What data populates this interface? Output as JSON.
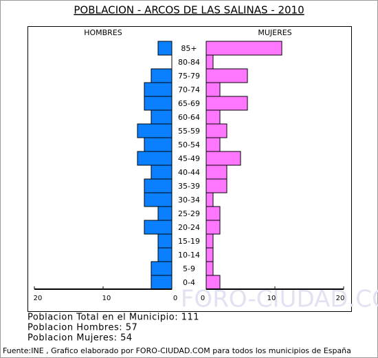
{
  "chart_data": {
    "type": "pyramid",
    "title": "POBLACION - ARCOS DE LAS SALINAS - 2010",
    "categories": [
      "85+",
      "80-84",
      "75-79",
      "70-74",
      "65-69",
      "60-64",
      "55-59",
      "50-54",
      "45-49",
      "40-44",
      "35-39",
      "30-34",
      "25-29",
      "20-24",
      "15-19",
      "10-14",
      "5-9",
      "0-4"
    ],
    "series": [
      {
        "name": "HOMBRES",
        "color": "#0a80ff",
        "values": [
          2,
          0,
          3,
          4,
          4,
          3,
          5,
          4,
          5,
          3,
          4,
          4,
          2,
          4,
          2,
          2,
          3,
          3
        ]
      },
      {
        "name": "MUJERES",
        "color": "#ff77ff",
        "values": [
          11,
          1,
          6,
          2,
          6,
          2,
          3,
          2,
          5,
          3,
          3,
          1,
          2,
          2,
          1,
          1,
          1,
          2
        ]
      }
    ],
    "xlim": [
      0,
      20
    ],
    "xticks": [
      0,
      10,
      20
    ],
    "watermark": "FORO-CIUDAD.COM"
  },
  "footer": {
    "stats": [
      "Poblacion Total en el Municipio: 111",
      "Poblacion Hombres: 57",
      "Poblacion Mujeres: 54"
    ],
    "source": "Fuente:INE , Grafico elaborado por FORO-CIUDAD.COM para todos los municipios de España"
  }
}
